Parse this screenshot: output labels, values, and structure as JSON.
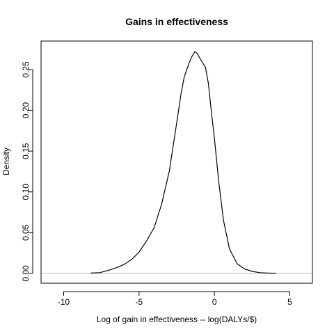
{
  "chart_data": {
    "type": "line",
    "title": "Gains in effectiveness",
    "xlabel": "Log of gain in effectiveness -- log(DALYs/$)",
    "ylabel": "Density",
    "xlim": [
      -11.5,
      6.5
    ],
    "ylim": [
      -0.012,
      0.285
    ],
    "x_ticks": [
      -10,
      -5,
      0,
      5
    ],
    "x_tick_labels": [
      "-10",
      "-5",
      "0",
      "5"
    ],
    "y_ticks": [
      0.0,
      0.05,
      0.1,
      0.15,
      0.2,
      0.25
    ],
    "y_tick_labels": [
      "0.00",
      "0.05",
      "0.10",
      "0.15",
      "0.20",
      "0.25"
    ],
    "baseline": 0,
    "colors": {
      "line": "#000000",
      "baseline": "#bebebe",
      "axes": "#000000"
    },
    "grid": false,
    "series": [
      {
        "x": [
          -8.2,
          -7.6,
          -7.0,
          -6.5,
          -6.0,
          -5.5,
          -5.0,
          -4.5,
          -4.0,
          -3.5,
          -3.0,
          -2.5,
          -2.2,
          -2.0,
          -1.7,
          -1.5,
          -1.3,
          -1.15,
          -1.0,
          -0.8,
          -0.6,
          -0.4,
          -0.2,
          0.0,
          0.3,
          0.6,
          1.0,
          1.5,
          2.0,
          2.5,
          3.0,
          3.5,
          4.0,
          4.1
        ],
        "y": [
          0.0005,
          0.001,
          0.004,
          0.007,
          0.011,
          0.017,
          0.026,
          0.04,
          0.056,
          0.085,
          0.125,
          0.185,
          0.222,
          0.241,
          0.257,
          0.266,
          0.272,
          0.27,
          0.265,
          0.259,
          0.253,
          0.233,
          0.198,
          0.165,
          0.11,
          0.065,
          0.03,
          0.012,
          0.0055,
          0.0025,
          0.001,
          0.0005,
          0.0002,
          0.0001
        ]
      }
    ]
  }
}
